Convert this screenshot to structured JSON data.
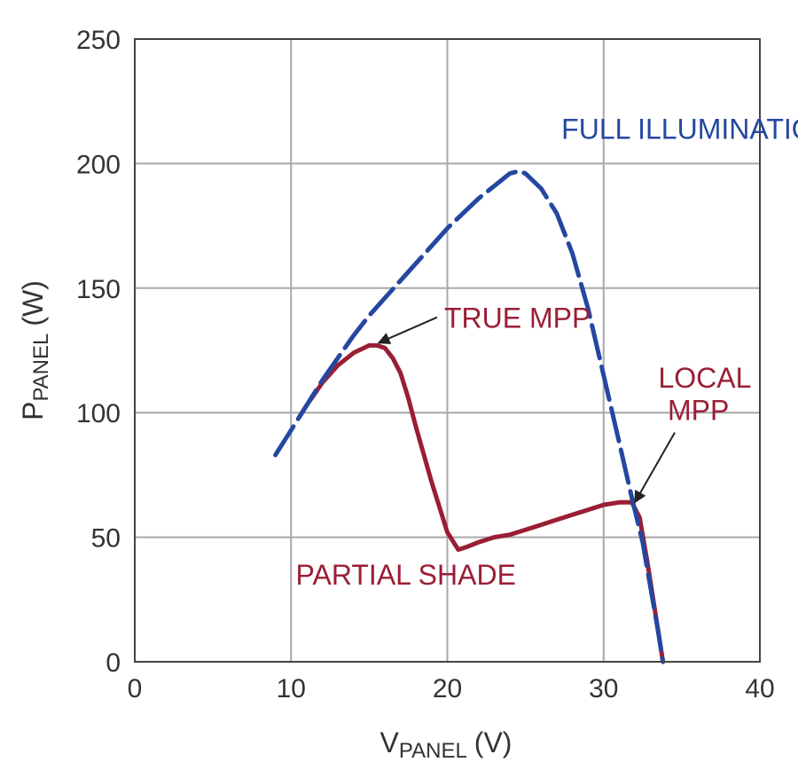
{
  "chart_data": {
    "type": "line",
    "xlabel": {
      "main": "V",
      "sub": "PANEL",
      "unit": "(V)"
    },
    "ylabel": {
      "main": "P",
      "sub": "PANEL",
      "unit": "(W)"
    },
    "xlim": [
      0,
      40
    ],
    "ylim": [
      0,
      250
    ],
    "xticks": [
      0,
      10,
      20,
      30,
      40
    ],
    "yticks": [
      0,
      50,
      100,
      150,
      200,
      250
    ],
    "grid": true,
    "colors": {
      "full": "#2447a0",
      "shade": "#9a1e35",
      "grid": "#a8a8a8",
      "axis": "#444444"
    },
    "series": [
      {
        "name": "FULL ILLUMINATION",
        "style": "dashed",
        "x": [
          9,
          10,
          11,
          12,
          13,
          14,
          15,
          16,
          17,
          18,
          19,
          20,
          21,
          22,
          23,
          24,
          24.6,
          25,
          26,
          27,
          28,
          29,
          30,
          31,
          31.8,
          32.5,
          33,
          33.5,
          33.8
        ],
        "y": [
          83,
          93,
          103,
          113,
          122,
          131,
          139,
          146,
          153,
          160,
          167,
          174,
          180,
          186,
          191,
          196,
          197,
          196,
          190,
          180,
          164,
          142,
          115,
          88,
          66,
          48,
          30,
          12,
          0
        ]
      },
      {
        "name": "PARTIAL SHADE",
        "style": "solid",
        "x": [
          10.5,
          11,
          12,
          13,
          14,
          15,
          15.5,
          16,
          16.5,
          17,
          17.5,
          18,
          19,
          20,
          20.7,
          21.2,
          22,
          23,
          24,
          25,
          26,
          27,
          28,
          29,
          30,
          31,
          31.8,
          32.3,
          32.8,
          33.3,
          33.8
        ],
        "y": [
          98,
          103,
          112,
          119,
          124,
          127,
          127,
          126,
          122,
          116,
          106,
          94,
          72,
          52,
          45,
          46,
          48,
          50,
          51,
          53,
          55,
          57,
          59,
          61,
          63,
          64,
          64,
          58,
          40,
          20,
          0
        ]
      }
    ],
    "annotations": [
      {
        "text": "FULL ILLUMINATION",
        "color": "#2447a0",
        "x": 27.3,
        "y": 210
      },
      {
        "text": "TRUE MPP",
        "color": "#9a1e35",
        "x": 19.8,
        "y": 134,
        "arrow_to": [
          15.6,
          128
        ]
      },
      {
        "text": "LOCAL",
        "color": "#9a1e35",
        "x": 33.5,
        "y": 110
      },
      {
        "text": "MPP",
        "color": "#9a1e35",
        "x": 34.1,
        "y": 97,
        "arrow_to": [
          32.0,
          64
        ]
      },
      {
        "text": "PARTIAL SHADE",
        "color": "#9a1e35",
        "x": 10.3,
        "y": 31
      }
    ]
  }
}
